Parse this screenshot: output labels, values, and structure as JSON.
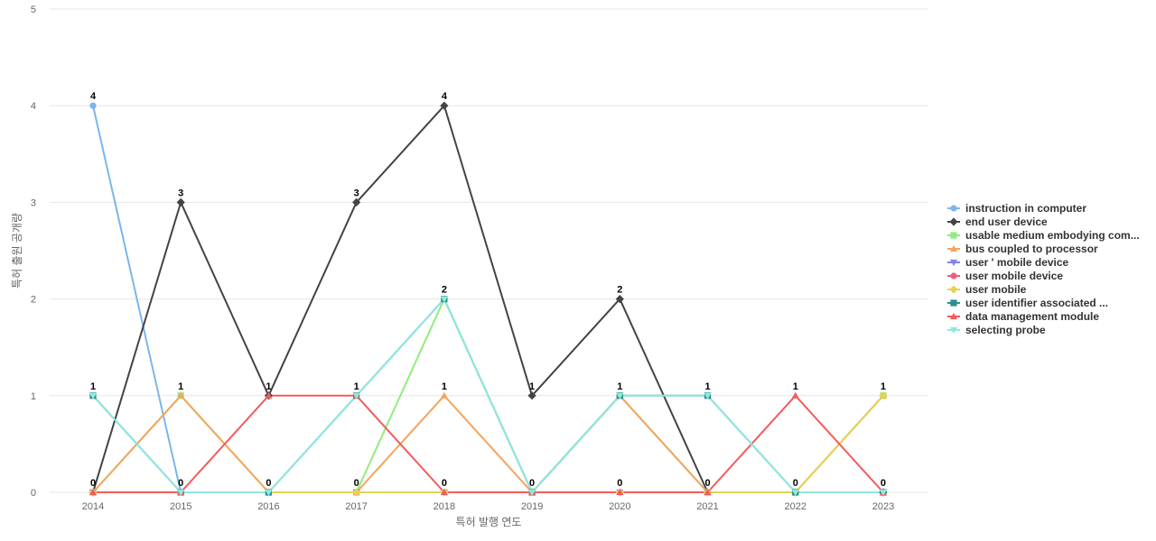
{
  "chart_data": {
    "type": "line",
    "title": "",
    "xlabel": "특허 발행 연도",
    "ylabel": "특허 출원 공개량",
    "ylim": [
      0,
      5
    ],
    "y_ticks": [
      "0",
      "1",
      "2",
      "3",
      "4",
      "5"
    ],
    "grid": true,
    "legend_position": "right",
    "categories": [
      "2014",
      "2015",
      "2016",
      "2017",
      "2018",
      "2019",
      "2020",
      "2021",
      "2022",
      "2023"
    ],
    "series": [
      {
        "name": "instruction in computer",
        "color": "#7cb5ec",
        "marker": "circle",
        "values": [
          4,
          0,
          0,
          0,
          0,
          0,
          0,
          0,
          0,
          0
        ]
      },
      {
        "name": "end user device",
        "color": "#434348",
        "marker": "diamond",
        "values": [
          0,
          3,
          1,
          3,
          4,
          1,
          2,
          0,
          0,
          0
        ]
      },
      {
        "name": "usable medium embodying com...",
        "color": "#90ed7d",
        "marker": "square",
        "values": [
          0,
          1,
          0,
          0,
          2,
          0,
          1,
          0,
          0,
          1
        ]
      },
      {
        "name": "bus coupled to processor",
        "color": "#f7a35c",
        "marker": "triangle",
        "values": [
          0,
          1,
          0,
          0,
          1,
          0,
          1,
          0,
          0,
          1
        ]
      },
      {
        "name": "user ' mobile device",
        "color": "#8085e9",
        "marker": "triangle-down",
        "values": [
          0,
          0,
          0,
          0,
          0,
          0,
          0,
          0,
          0,
          0
        ]
      },
      {
        "name": "user mobile device",
        "color": "#f15c80",
        "marker": "circle",
        "values": [
          0,
          0,
          0,
          0,
          0,
          0,
          0,
          0,
          0,
          0
        ]
      },
      {
        "name": "user mobile",
        "color": "#e4d354",
        "marker": "diamond",
        "values": [
          0,
          0,
          0,
          0,
          0,
          0,
          0,
          0,
          0,
          1
        ]
      },
      {
        "name": "user identifier associated ...",
        "color": "#2b908f",
        "marker": "square",
        "values": [
          1,
          0,
          0,
          1,
          2,
          0,
          1,
          1,
          0,
          0
        ]
      },
      {
        "name": "data management module",
        "color": "#f45b5b",
        "marker": "triangle",
        "values": [
          0,
          0,
          1,
          1,
          0,
          0,
          0,
          0,
          1,
          0
        ]
      },
      {
        "name": "selecting probe",
        "color": "#91e8e1",
        "marker": "triangle-down",
        "values": [
          1,
          0,
          0,
          1,
          2,
          0,
          1,
          1,
          0,
          0
        ]
      }
    ],
    "data_labels": [
      {
        "x": "2014",
        "value": 4,
        "series": "instruction in computer",
        "text": "4"
      },
      {
        "x": "2014",
        "value": 1,
        "series": "selecting probe",
        "text": "1"
      },
      {
        "x": "2014",
        "value": 0,
        "series": "end user device",
        "text": "0"
      },
      {
        "x": "2015",
        "value": 3,
        "series": "end user device",
        "text": "3"
      },
      {
        "x": "2015",
        "value": 1,
        "series": "bus coupled to processor",
        "text": "1"
      },
      {
        "x": "2015",
        "value": 0,
        "series": "instruction in computer",
        "text": "0"
      },
      {
        "x": "2016",
        "value": 1,
        "series": "end user device",
        "text": "1"
      },
      {
        "x": "2016",
        "value": 0,
        "series": "selecting probe",
        "text": "0"
      },
      {
        "x": "2017",
        "value": 3,
        "series": "end user device",
        "text": "3"
      },
      {
        "x": "2017",
        "value": 1,
        "series": "selecting probe",
        "text": "1"
      },
      {
        "x": "2017",
        "value": 0,
        "series": "usable medium embodying com...",
        "text": "0"
      },
      {
        "x": "2018",
        "value": 4,
        "series": "end user device",
        "text": "4"
      },
      {
        "x": "2018",
        "value": 2,
        "series": "selecting probe",
        "text": "2"
      },
      {
        "x": "2018",
        "value": 1,
        "series": "bus coupled to processor",
        "text": "1"
      },
      {
        "x": "2018",
        "value": 0,
        "series": "data management module",
        "text": "0"
      },
      {
        "x": "2019",
        "value": 1,
        "series": "end user device",
        "text": "1"
      },
      {
        "x": "2019",
        "value": 0,
        "series": "selecting probe",
        "text": "0"
      },
      {
        "x": "2020",
        "value": 2,
        "series": "end user device",
        "text": "2"
      },
      {
        "x": "2020",
        "value": 1,
        "series": "selecting probe",
        "text": "1"
      },
      {
        "x": "2020",
        "value": 0,
        "series": "data management module",
        "text": "0"
      },
      {
        "x": "2021",
        "value": 1,
        "series": "selecting probe",
        "text": "1"
      },
      {
        "x": "2021",
        "value": 0,
        "series": "end user device",
        "text": "0"
      },
      {
        "x": "2022",
        "value": 1,
        "series": "data management module",
        "text": "1"
      },
      {
        "x": "2022",
        "value": 0,
        "series": "selecting probe",
        "text": "0"
      },
      {
        "x": "2023",
        "value": 1,
        "series": "user mobile",
        "text": "1"
      },
      {
        "x": "2023",
        "value": 0,
        "series": "selecting probe",
        "text": "0"
      }
    ]
  }
}
